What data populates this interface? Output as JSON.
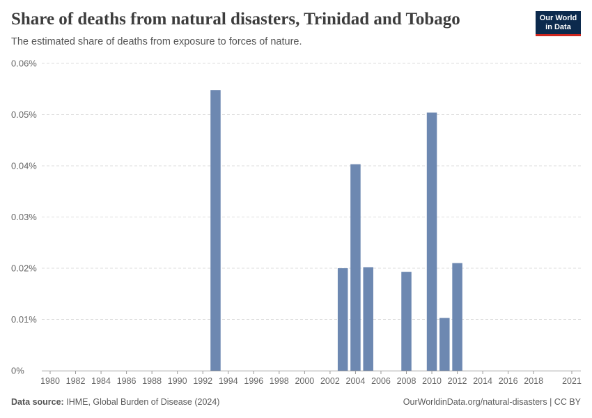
{
  "header": {
    "title": "Share of deaths from natural disasters, Trinidad and Tobago",
    "subtitle": "The estimated share of deaths from exposure to forces of nature."
  },
  "logo": {
    "line1": "Our World",
    "line2": "in Data"
  },
  "footer": {
    "source_label": "Data source:",
    "source_text": "IHME, Global Burden of Disease (2024)",
    "right_text": "OurWorldinData.org/natural-disasters | CC BY"
  },
  "colors": {
    "bar": "#6d88b1",
    "grid": "#dddddd",
    "axis": "#999999",
    "tick_text": "#666666"
  },
  "chart_data": {
    "type": "bar",
    "title": "Share of deaths from natural disasters, Trinidad and Tobago",
    "xlabel": "",
    "ylabel": "",
    "xlim": [
      1980,
      2021
    ],
    "ylim": [
      0,
      0.06
    ],
    "y_ticks": [
      0,
      0.01,
      0.02,
      0.03,
      0.04,
      0.05,
      0.06
    ],
    "y_tick_labels": [
      "0%",
      "0.01%",
      "0.02%",
      "0.03%",
      "0.04%",
      "0.05%",
      "0.06%"
    ],
    "x_ticks": [
      1980,
      1982,
      1984,
      1986,
      1988,
      1990,
      1992,
      1994,
      1996,
      1998,
      2000,
      2002,
      2004,
      2006,
      2008,
      2010,
      2012,
      2014,
      2016,
      2018,
      2021
    ],
    "x_tick_labels": [
      "1980",
      "1982",
      "1984",
      "1986",
      "1988",
      "1990",
      "1992",
      "1994",
      "1996",
      "1998",
      "2000",
      "2002",
      "2004",
      "2006",
      "2008",
      "2010",
      "2012",
      "2014",
      "2016",
      "2018",
      "2021"
    ],
    "grid": true,
    "unit": "%",
    "points": [
      {
        "year": 1993,
        "value": 0.0548
      },
      {
        "year": 2003,
        "value": 0.02
      },
      {
        "year": 2004,
        "value": 0.0403
      },
      {
        "year": 2005,
        "value": 0.0202
      },
      {
        "year": 2008,
        "value": 0.0193
      },
      {
        "year": 2010,
        "value": 0.0504
      },
      {
        "year": 2011,
        "value": 0.0103
      },
      {
        "year": 2012,
        "value": 0.021
      }
    ]
  }
}
